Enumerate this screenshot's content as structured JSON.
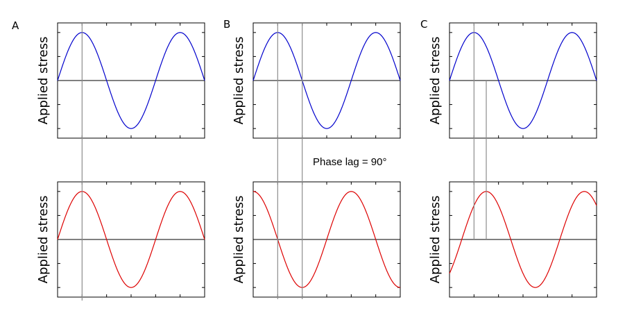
{
  "chart_data": {
    "type": "line",
    "annotation": "Phase lag = 90°",
    "columns": [
      {
        "letter": "A",
        "lag_degrees": 0,
        "top": {
          "ylabel": "Applied stress",
          "color": "#0000cc",
          "series": {
            "amplitude": 1,
            "phase_degrees": 0
          }
        },
        "bottom": {
          "ylabel": "Applied stress",
          "color": "#dd0000",
          "series": {
            "amplitude": 1,
            "phase_degrees": 0
          }
        }
      },
      {
        "letter": "B",
        "lag_degrees": 90,
        "top": {
          "ylabel": "Applied stress",
          "color": "#0000cc",
          "series": {
            "amplitude": 1,
            "phase_degrees": 0
          }
        },
        "bottom": {
          "ylabel": "Applied stress",
          "color": "#dd0000",
          "series": {
            "amplitude": 1,
            "phase_degrees": 90
          }
        }
      },
      {
        "letter": "C",
        "lag_degrees": 45,
        "top": {
          "ylabel": "Applied stress",
          "color": "#0000cc",
          "series": {
            "amplitude": 1,
            "phase_degrees": 0
          }
        },
        "bottom": {
          "ylabel": "Applied stress",
          "color": "#dd0000",
          "series": {
            "amplitude": 1,
            "phase_degrees": -45
          }
        }
      }
    ],
    "x_range_degrees": [
      0,
      540
    ],
    "ylim": [
      -1.2,
      1.2
    ],
    "grid": false
  }
}
